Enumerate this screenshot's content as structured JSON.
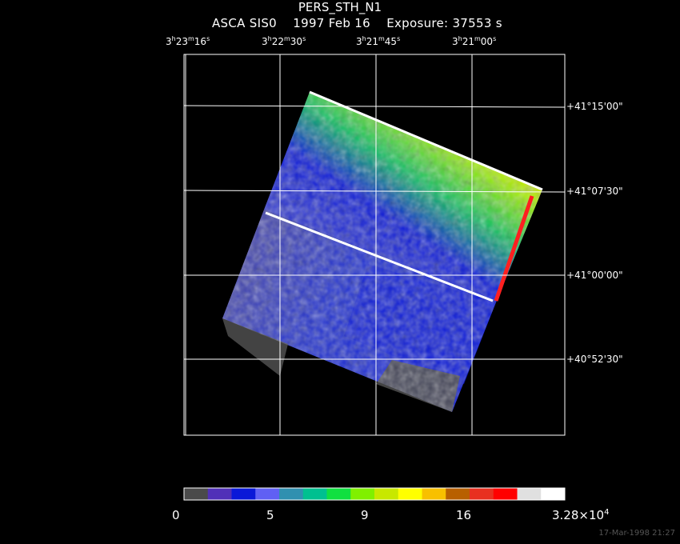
{
  "header": {
    "object": "PERS_STH_N1",
    "subtitle": "ASCA SIS0    1997 Feb 16    Exposure: 37553 s"
  },
  "ra_labels": [
    {
      "h": "3",
      "m": "23",
      "s": "16"
    },
    {
      "h": "3",
      "m": "22",
      "s": "30"
    },
    {
      "h": "3",
      "m": "21",
      "s": "45"
    },
    {
      "h": "3",
      "m": "21",
      "s": "00"
    }
  ],
  "dec_labels": [
    "+41°15'00\"",
    "+41°07'30\"",
    "+41°00'00\"",
    "+40°52'30\""
  ],
  "colorbar": {
    "colors": [
      "#4a4a4a",
      "#5030b8",
      "#0a18d8",
      "#6060f4",
      "#3090b0",
      "#00c090",
      "#10e040",
      "#80f000",
      "#c8e800",
      "#ffff00",
      "#f8c000",
      "#b86000",
      "#e83020",
      "#ff0000",
      "#e0e0e0",
      "#ffffff"
    ],
    "tick_labels": [
      "0",
      "5",
      "9",
      "16"
    ],
    "max_label_base": "3.28×10",
    "max_label_exp": "4"
  },
  "timestamp": "17-Mar-1998 21:27"
}
